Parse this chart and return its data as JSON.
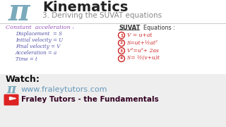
{
  "bg_color": "#ffffff",
  "footer_bg": "#eeeeee",
  "title1": "Kinematics",
  "title2": "3. Deriving the SUVAT equations",
  "title1_color": "#222222",
  "title2_color": "#888888",
  "pi_color": "#7aaabb",
  "left_heading": "Constant  acceleration :",
  "left_heading_color": "#9955bb",
  "left_items": [
    "Displacement  = S",
    "Initial velocity = U",
    "Final velocity = V",
    "Acceleration = a",
    "Time = t"
  ],
  "left_items_color": "#5555aa",
  "right_heading1": "SUVAT",
  "right_heading2": "  Equations :",
  "right_heading_color": "#333333",
  "suvat_equations": [
    "V = u+at",
    "S=ut+½at²",
    "V²=u²+ 2as",
    "S= ½(v+u)t"
  ],
  "eq_color": "#cc2222",
  "watch_text": "Watch:",
  "website": "www.fraleytutors.com",
  "channel": "Fraley Tutors - the Fundamentals",
  "watch_color": "#111111",
  "website_color": "#6699bb",
  "channel_color": "#330022",
  "youtube_red": "#dd2222"
}
